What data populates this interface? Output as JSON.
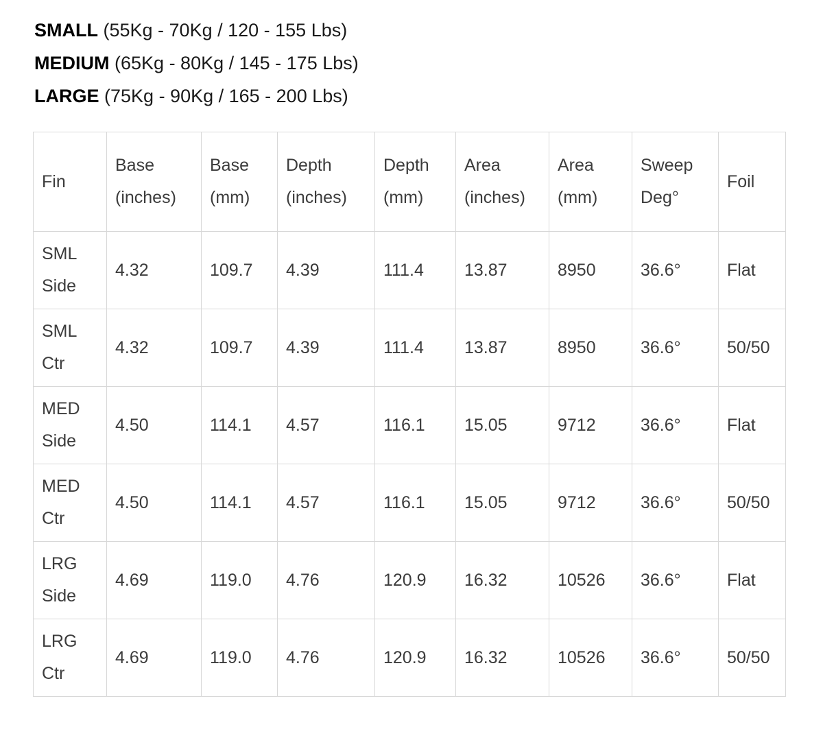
{
  "page": {
    "background": "#ffffff",
    "text_color": "#3c3c3c",
    "border_color": "#d8d8d8"
  },
  "size_legend": [
    {
      "label": "SMALL",
      "range": "(55Kg - 70Kg / 120 - 155 Lbs)"
    },
    {
      "label": "MEDIUM",
      "range": "(65Kg - 80Kg / 145 - 175 Lbs)"
    },
    {
      "label": "LARGE",
      "range": "(75Kg - 90Kg / 165 - 200 Lbs)"
    }
  ],
  "fin_table": {
    "column_keys": [
      "fin",
      "base-inches",
      "base-mm",
      "depth-inches",
      "depth-mm",
      "area-inches",
      "area-mm",
      "sweep-deg",
      "foil"
    ],
    "header_lines": [
      [
        "Fin"
      ],
      [
        "Base",
        "(inches)"
      ],
      [
        "Base",
        "(mm)"
      ],
      [
        "Depth",
        "(inches)"
      ],
      [
        "Depth",
        "(mm)"
      ],
      [
        "Area",
        "(inches)"
      ],
      [
        "Area",
        "(mm)"
      ],
      [
        "Sweep",
        "Deg°"
      ],
      [
        "Foil"
      ]
    ],
    "rows": [
      {
        "fin": [
          "SML",
          "Side"
        ],
        "cells": [
          "4.32",
          "109.7",
          "4.39",
          "111.4",
          "13.87",
          "8950",
          "36.6°",
          "Flat"
        ]
      },
      {
        "fin": [
          "SML",
          "Ctr"
        ],
        "cells": [
          "4.32",
          "109.7",
          "4.39",
          "111.4",
          "13.87",
          "8950",
          "36.6°",
          "50/50"
        ]
      },
      {
        "fin": [
          "MED",
          "Side"
        ],
        "cells": [
          "4.50",
          "114.1",
          "4.57",
          "116.1",
          "15.05",
          "9712",
          "36.6°",
          "Flat"
        ]
      },
      {
        "fin": [
          "MED",
          "Ctr"
        ],
        "cells": [
          "4.50",
          "114.1",
          "4.57",
          "116.1",
          "15.05",
          "9712",
          "36.6°",
          "50/50"
        ]
      },
      {
        "fin": [
          "LRG",
          "Side"
        ],
        "cells": [
          "4.69",
          "119.0",
          "4.76",
          "120.9",
          "16.32",
          "10526",
          "36.6°",
          "Flat"
        ]
      },
      {
        "fin": [
          "LRG",
          "Ctr"
        ],
        "cells": [
          "4.69",
          "119.0",
          "4.76",
          "120.9",
          "16.32",
          "10526",
          "36.6°",
          "50/50"
        ]
      }
    ]
  }
}
